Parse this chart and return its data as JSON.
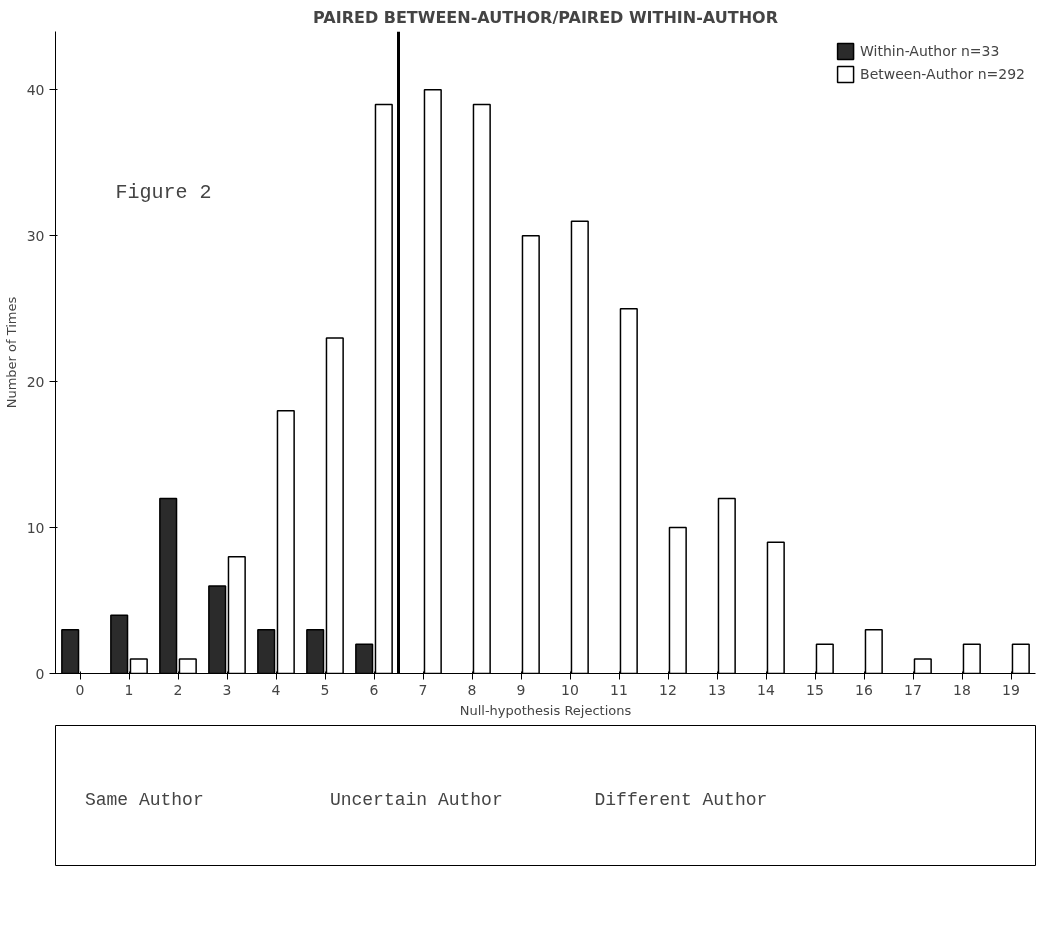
{
  "chart_data": [
    {
      "type": "bar",
      "title": "PAIRED BETWEEN-AUTHOR/PAIRED WITHIN-AUTHOR",
      "xlabel": "Null-hypothesis Rejections",
      "ylabel": "Number of Times",
      "x": [
        0,
        1,
        2,
        3,
        4,
        5,
        6,
        7,
        8,
        9,
        10,
        11,
        12,
        13,
        14,
        15,
        16,
        17,
        18,
        19
      ],
      "series": [
        {
          "name": "Within-Author n=33",
          "color": "#2b2b2b",
          "values": [
            3,
            4,
            12,
            6,
            3,
            3,
            2,
            null,
            null,
            null,
            null,
            null,
            null,
            null,
            null,
            null,
            null,
            null,
            null,
            null
          ]
        },
        {
          "name": "Between-Author n=292",
          "color": "#ffffff",
          "values": [
            null,
            1,
            1,
            8,
            18,
            23,
            39,
            40,
            39,
            30,
            31,
            25,
            10,
            12,
            9,
            2,
            3,
            1,
            2,
            2
          ]
        }
      ],
      "xlim": [
        -0.5,
        19.5
      ],
      "xticks": [
        0,
        1,
        2,
        3,
        4,
        5,
        6,
        7,
        8,
        9,
        10,
        11,
        12,
        13,
        14,
        15,
        16,
        17,
        18,
        19
      ],
      "ylim": [
        0,
        44
      ],
      "yticks": [
        0,
        10,
        20,
        30,
        40
      ],
      "ref_lines": [
        {
          "axis": "x",
          "value": 6.5,
          "label": null
        }
      ],
      "annotations": [
        "Figure 2"
      ],
      "legend": "top right",
      "grid": false
    },
    {
      "type": "other",
      "annotations": [
        "Same Author",
        "Uncertain Author",
        "Different Author"
      ]
    }
  ]
}
